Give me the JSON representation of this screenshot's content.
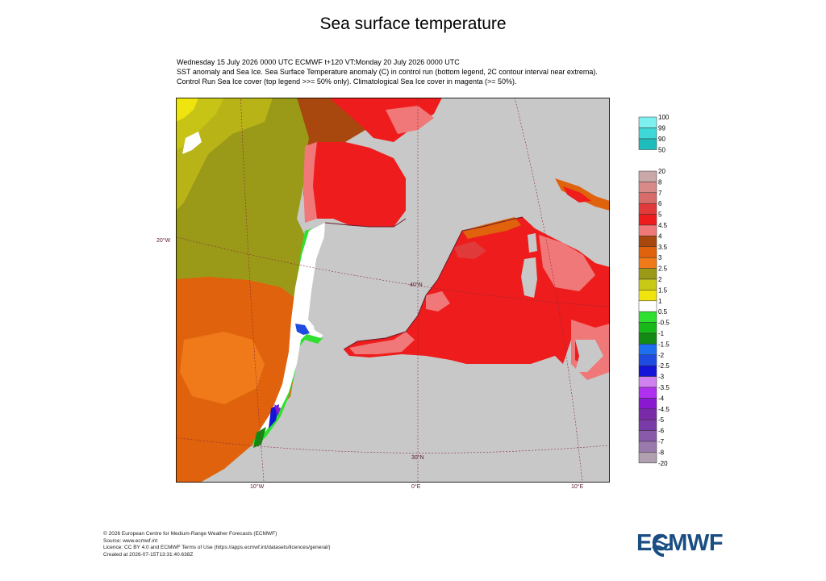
{
  "title": "Sea surface temperature",
  "subtitle": [
    "Wednesday 15 July 2026 0000 UTC  ECMWF  t+120  VT:Monday 20 July 2026 0000 UTC",
    "SST anomaly and Sea Ice. Sea Surface Temperature anomaly (C) in control run (bottom legend, 2C contour interval near extrema).",
    "Control Run Sea Ice cover (top legend >>= 50% only). Climatological Sea Ice cover in magenta (>= 50%)."
  ],
  "map": {
    "lon_labels": [
      "10°W",
      "0°E",
      "10°E"
    ],
    "lat_labels": [
      "20°W",
      "40°N",
      "30°N"
    ]
  },
  "ice_legend": {
    "labels": [
      "100",
      "99",
      "90",
      "50"
    ],
    "colors": [
      "#7ff0f0",
      "#3fd8d8",
      "#1fbcbc",
      "#12a0a0"
    ]
  },
  "sst_legend": {
    "labels": [
      "20",
      "8",
      "7",
      "6",
      "5",
      "4.5",
      "4",
      "3.5",
      "3",
      "2.5",
      "2",
      "1.5",
      "1",
      "0.5",
      "-0.5",
      "-1",
      "-1.5",
      "-2",
      "-2.5",
      "-3",
      "-3.5",
      "-4",
      "-4.5",
      "-5",
      "-6",
      "-7",
      "-8",
      "-20"
    ],
    "colors": [
      "#c8a8a8",
      "#d88a88",
      "#d86c6a",
      "#e03a3a",
      "#ee1c1c",
      "#f07878",
      "#a8480e",
      "#e0620c",
      "#f07a1a",
      "#9a9a18",
      "#c8c816",
      "#f0e40e",
      "#ffffff",
      "#30e030",
      "#18b818",
      "#138a13",
      "#1e6ef0",
      "#1e4ce0",
      "#1414d8",
      "#d080f0",
      "#b030f0",
      "#8a18d0",
      "#7a2aa8",
      "#7a3aa8",
      "#8a5aaa",
      "#9a7aac",
      "#b0a0b0"
    ]
  },
  "footer": [
    "© 2026 European Centre for Medium-Range Weather Forecasts (ECMWF)",
    "Source: www.ecmwf.int",
    "Licence: CC BY 4.0 and ECMWF Terms of Use (https://apps.ecmwf.int/datasets/licences/general/)",
    "Created at 2026-07-15T13:31:40.638Z"
  ],
  "logo_text": "ECMWF"
}
